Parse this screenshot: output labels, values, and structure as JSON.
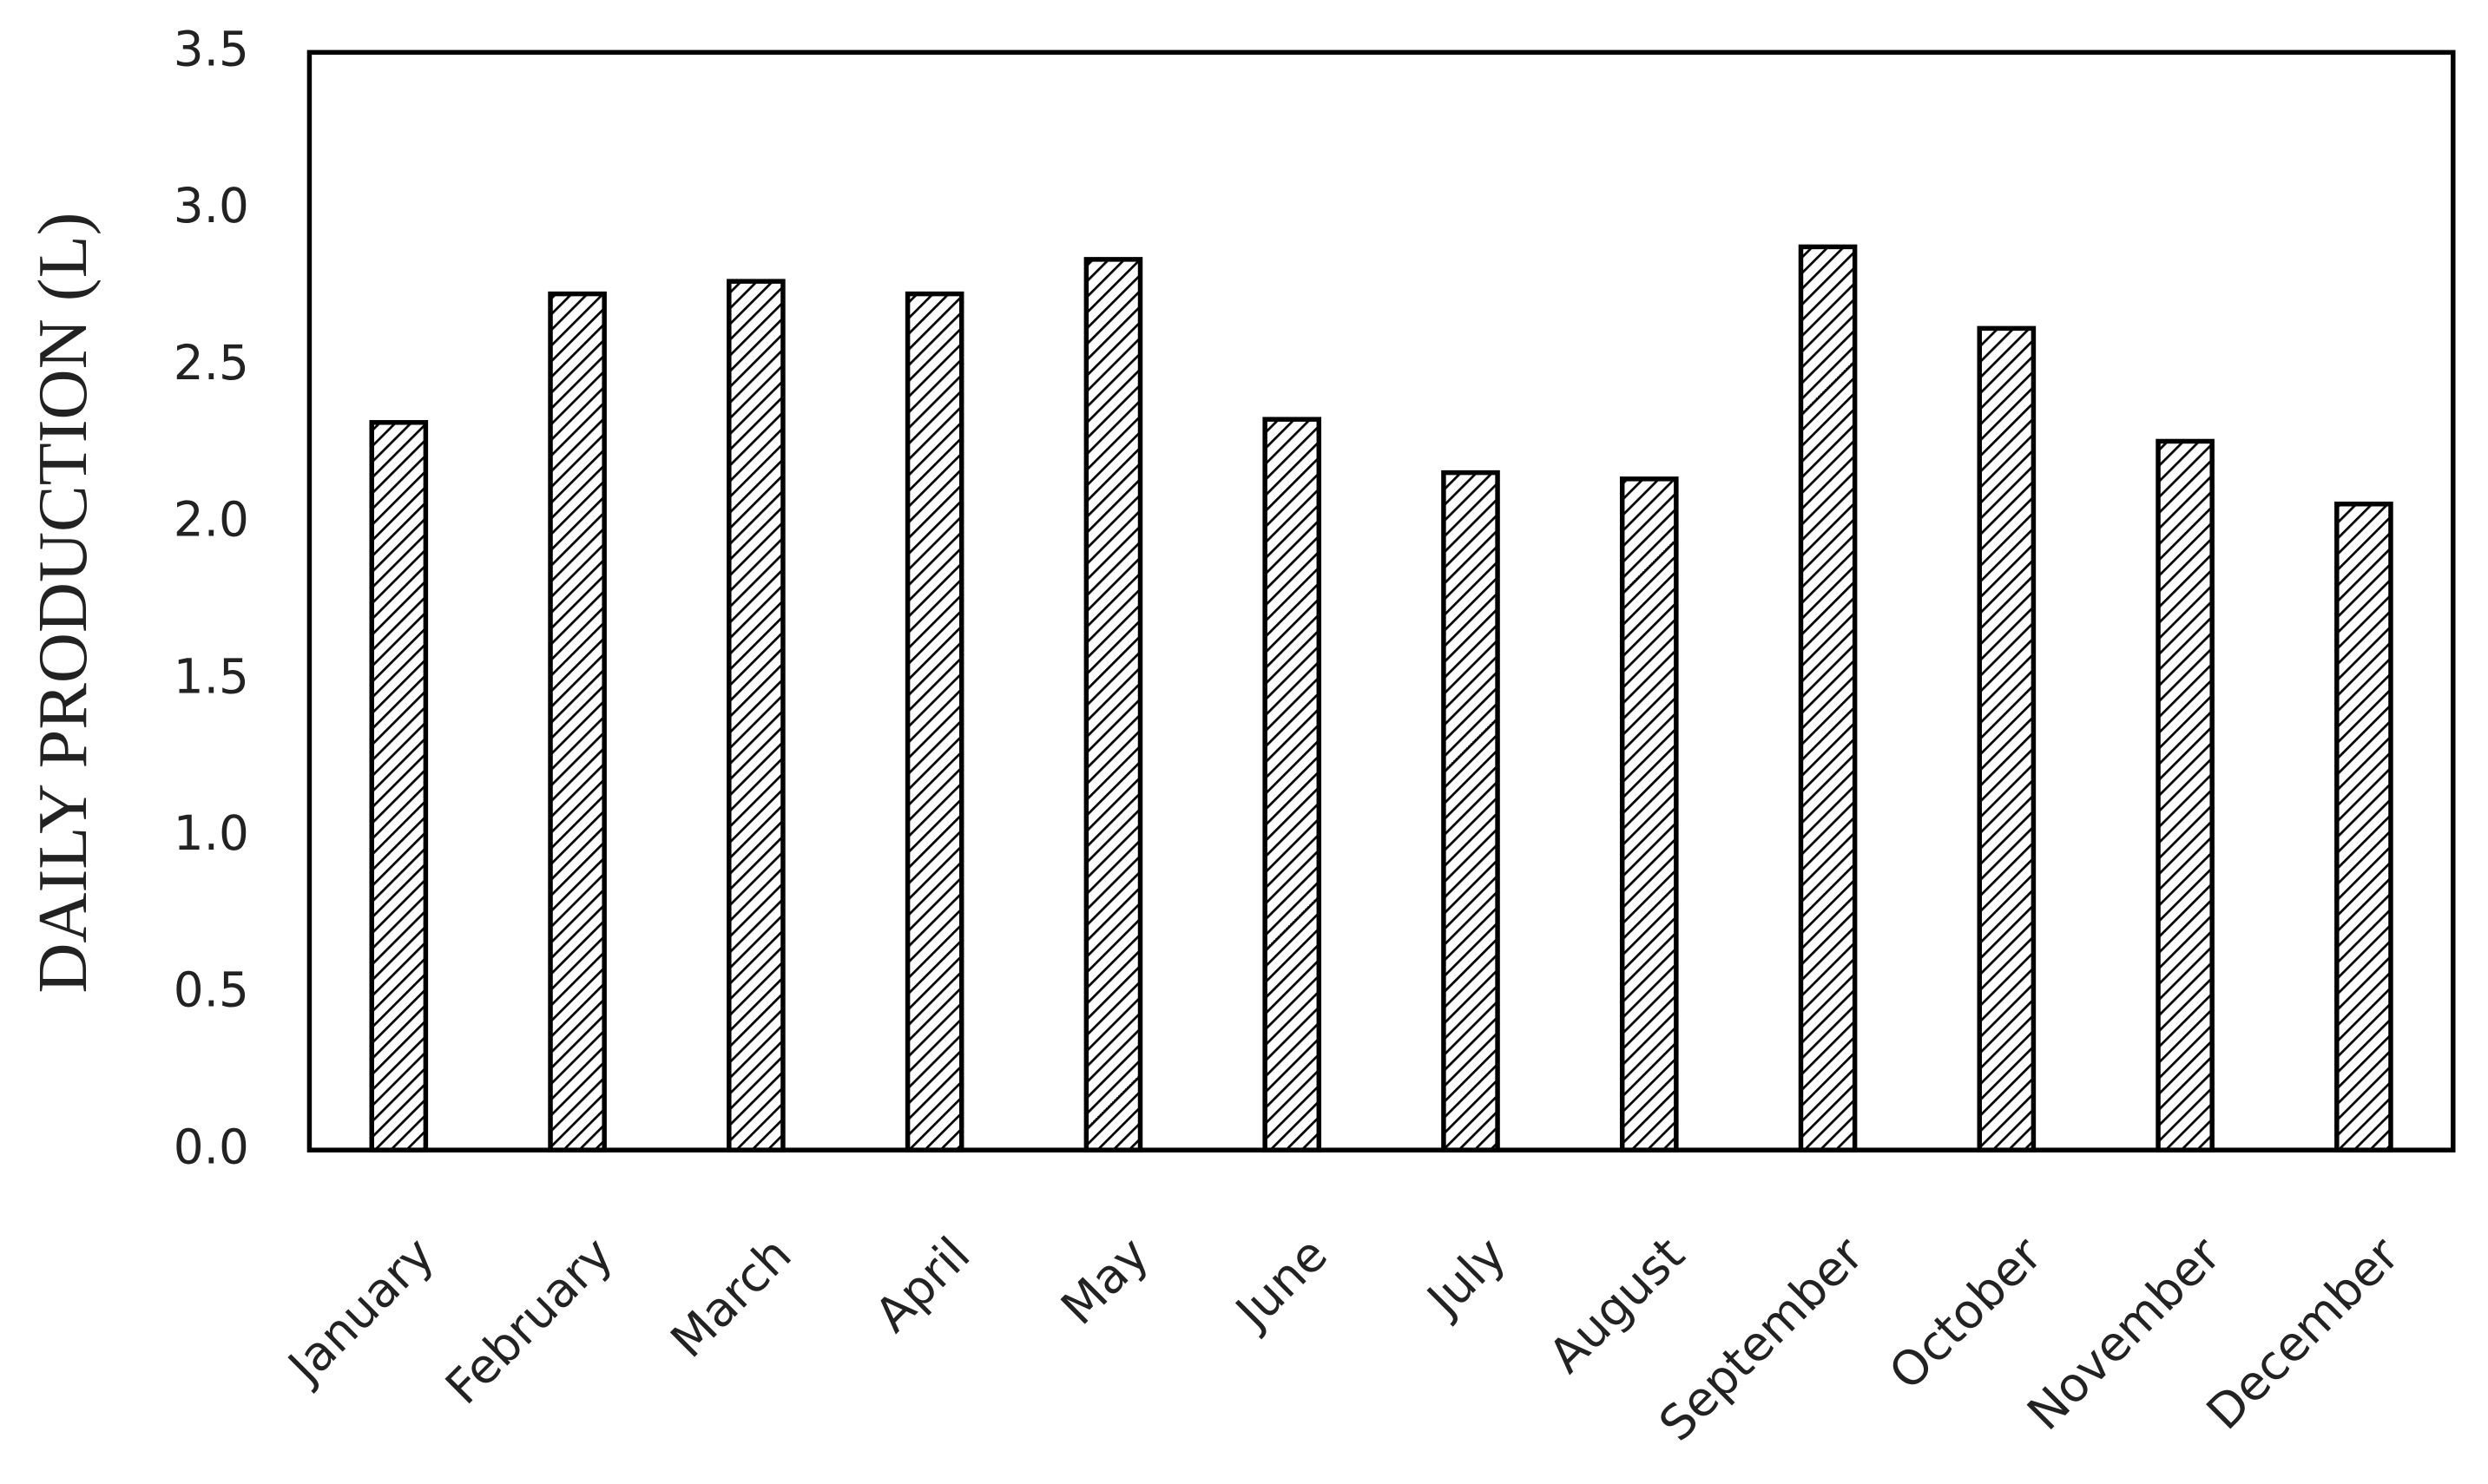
{
  "chart_data": {
    "type": "bar",
    "y_label": "DAILY PRODUCTION (L)",
    "categories": [
      "January",
      "February",
      "March",
      "April",
      "May",
      "June",
      "July",
      "August",
      "September",
      "October",
      "November",
      "December"
    ],
    "values": [
      2.32,
      2.73,
      2.77,
      2.73,
      2.84,
      2.33,
      2.16,
      2.14,
      2.88,
      2.62,
      2.26,
      2.06
    ],
    "color": "#000000",
    "ylim": [
      0,
      3.5
    ],
    "yticks": [
      {
        "value": 0,
        "label": "0.0"
      },
      0.5,
      {
        "value": 1,
        "label": "1.0"
      },
      1.5,
      {
        "value": 2,
        "label": "2.0"
      },
      2.5,
      {
        "value": 3,
        "label": "3.0"
      },
      3.5
    ],
    "grid": false
  }
}
